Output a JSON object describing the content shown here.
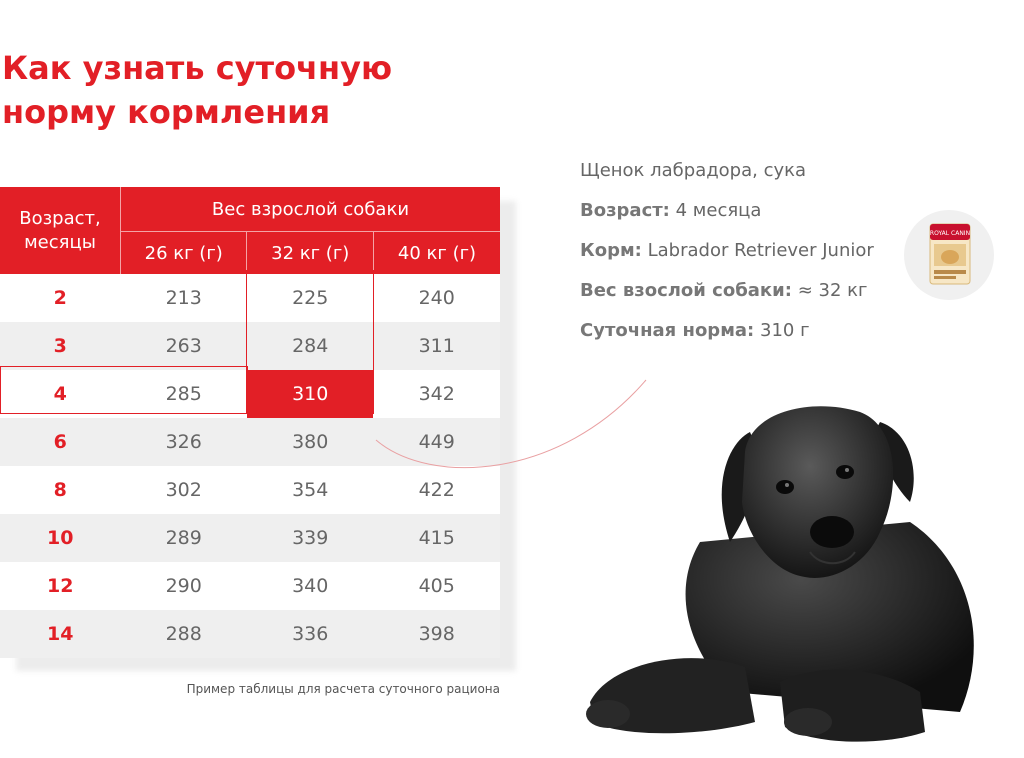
{
  "title": {
    "line1": "Как узнать суточную",
    "line2": "норму кормления"
  },
  "table": {
    "age_header": "Возраст, месяцы",
    "weight_header": "Вес взрослой собаки",
    "weight_columns": [
      "26 кг (г)",
      "32 кг (г)",
      "40 кг (г)"
    ],
    "rows": [
      {
        "age": "2",
        "w26": "213",
        "w32": "225",
        "w40": "240"
      },
      {
        "age": "3",
        "w26": "263",
        "w32": "284",
        "w40": "311"
      },
      {
        "age": "4",
        "w26": "285",
        "w32": "310",
        "w40": "342"
      },
      {
        "age": "6",
        "w26": "326",
        "w32": "380",
        "w40": "449"
      },
      {
        "age": "8",
        "w26": "302",
        "w32": "354",
        "w40": "422"
      },
      {
        "age": "10",
        "w26": "289",
        "w32": "339",
        "w40": "415"
      },
      {
        "age": "12",
        "w26": "290",
        "w32": "340",
        "w40": "405"
      },
      {
        "age": "14",
        "w26": "288",
        "w32": "336",
        "w40": "398"
      }
    ],
    "caption": "Пример таблицы для расчета суточного рациона"
  },
  "info": {
    "heading": "Щенок лабрадора, сука",
    "age_label": "Возраст:",
    "age_value": "4 месяца",
    "food_label": "Корм:",
    "food_value": "Labrador Retriever Junior",
    "adult_weight_label": "Вес взослой собаки:",
    "adult_weight_value": "≈ 32 кг",
    "daily_label": "Суточная норма:",
    "daily_value": "310 г"
  },
  "package": {
    "brand": "ROYAL CANIN"
  },
  "colors": {
    "accent": "#e21f26",
    "stripe": "#efefef",
    "text": "#666666"
  }
}
